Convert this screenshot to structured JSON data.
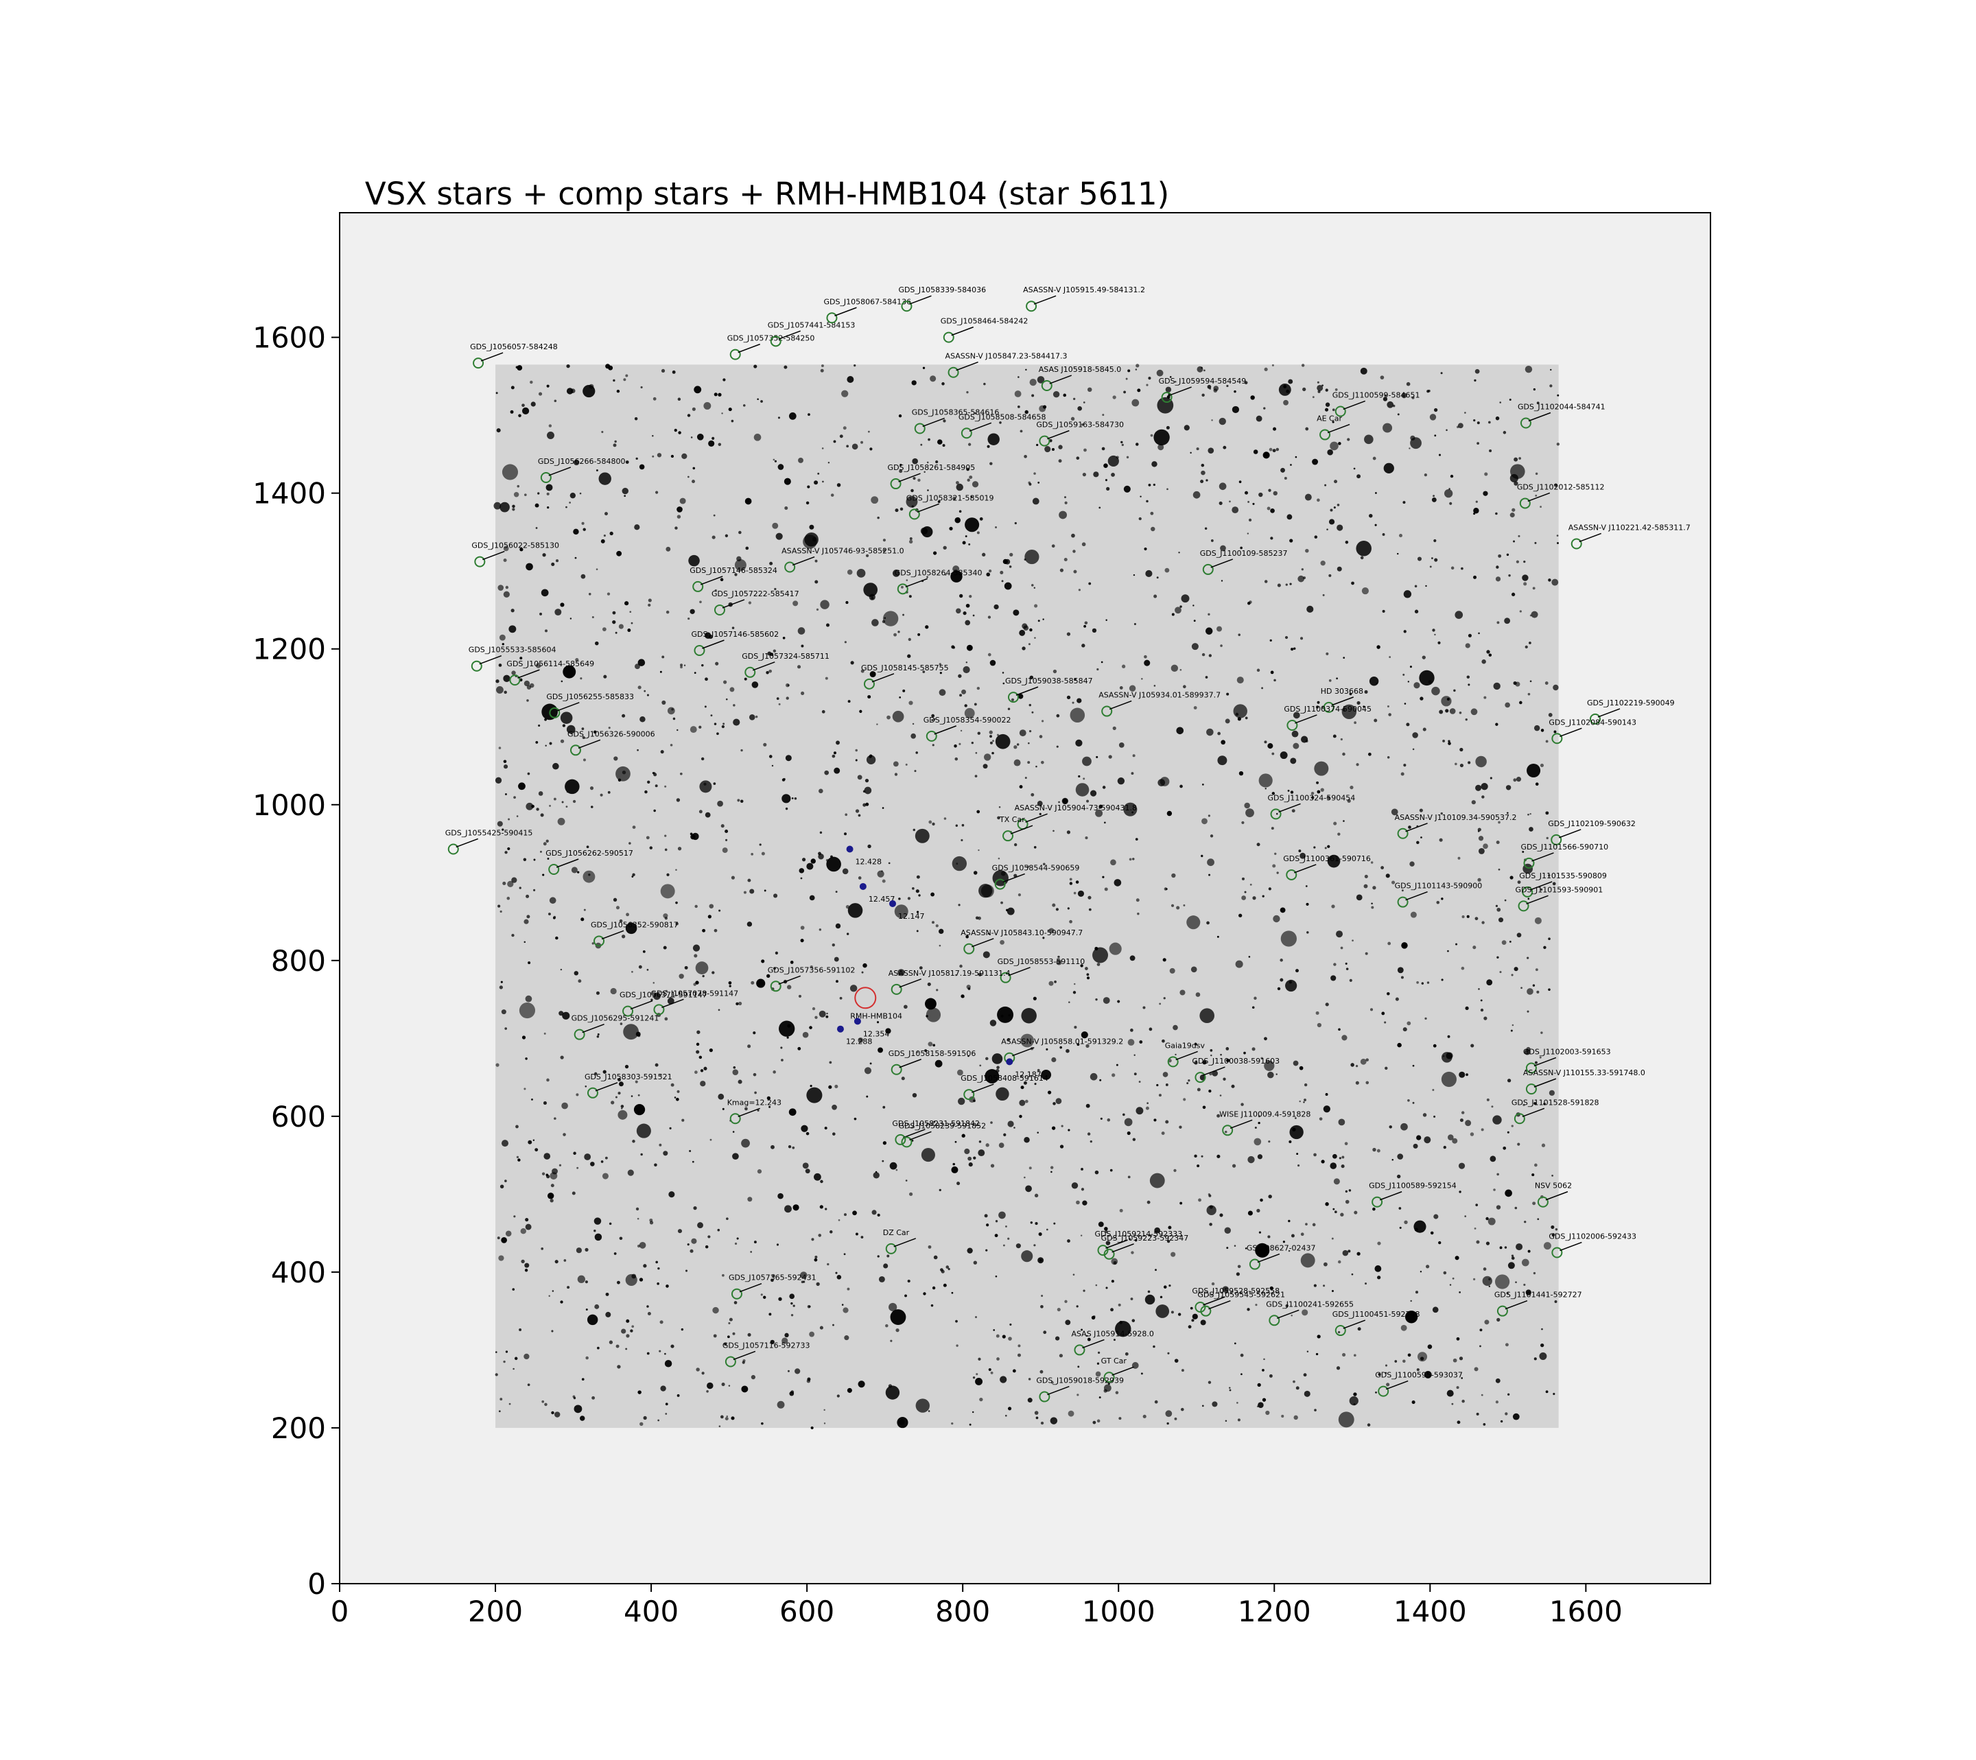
{
  "chart_data": {
    "type": "scatter",
    "title": "VSX stars + comp stars + RMH-HMB104 (star 5611)",
    "xlabel": "",
    "ylabel": "",
    "xlim": [
      0,
      1760
    ],
    "ylim": [
      0,
      1760
    ],
    "x_ticks": [
      0,
      200,
      400,
      600,
      800,
      1000,
      1200,
      1400,
      1600
    ],
    "y_ticks": [
      0,
      200,
      400,
      600,
      800,
      1000,
      1200,
      1400,
      1600
    ],
    "grid": false,
    "image_extent": {
      "x": [
        200,
        1565
      ],
      "y": [
        200,
        1565
      ]
    },
    "colors": {
      "vsx_marker": "#2e7d32",
      "comp_marker": "#1a1a8c",
      "target_marker": "#d32f2f",
      "background": "#f0f0f0",
      "image_background": "#d4d4d4",
      "star": "#000000"
    },
    "vsx_stars": [
      {
        "name": "GDS_J1056057-584248",
        "x": 178,
        "y": 1567
      },
      {
        "name": "GDS_J1057352-584250",
        "x": 508,
        "y": 1578
      },
      {
        "name": "GDS_J1057441-584153",
        "x": 560,
        "y": 1595
      },
      {
        "name": "GDS_J1058067-584136",
        "x": 632,
        "y": 1625
      },
      {
        "name": "GDS_J1058339-584036",
        "x": 728,
        "y": 1640
      },
      {
        "name": "ASASSN-V J105915.49-584131.2",
        "x": 888,
        "y": 1640
      },
      {
        "name": "GDS_J1058464-584242",
        "x": 782,
        "y": 1600
      },
      {
        "name": "ASASSN-V J105847.23-584417.3",
        "x": 788,
        "y": 1555
      },
      {
        "name": "ASAS J105918-5845.0",
        "x": 908,
        "y": 1538
      },
      {
        "name": "GDS_J1059594-584549",
        "x": 1062,
        "y": 1523
      },
      {
        "name": "GDS_J1100599-584651",
        "x": 1285,
        "y": 1505
      },
      {
        "name": "AE Car",
        "x": 1265,
        "y": 1475
      },
      {
        "name": "GDS_J1102044-584741",
        "x": 1523,
        "y": 1490
      },
      {
        "name": "GDS_J1058365-584616",
        "x": 745,
        "y": 1483
      },
      {
        "name": "GDS_J1058508-584658",
        "x": 805,
        "y": 1477
      },
      {
        "name": "GDS_J1059163-584730",
        "x": 905,
        "y": 1467
      },
      {
        "name": "GDS_J1056266-584800",
        "x": 265,
        "y": 1420
      },
      {
        "name": "GDS_J1058261-584905",
        "x": 714,
        "y": 1412
      },
      {
        "name": "GDS_J1058321-585019",
        "x": 738,
        "y": 1373
      },
      {
        "name": "GDS_J1102012-585112",
        "x": 1522,
        "y": 1387
      },
      {
        "name": "ASASSN-V J110221.42-585311.7",
        "x": 1588,
        "y": 1335
      },
      {
        "name": "GDS_J1056022-585130",
        "x": 180,
        "y": 1312
      },
      {
        "name": "ASASSN-V J105746-93-585251.0",
        "x": 578,
        "y": 1305
      },
      {
        "name": "GDS_J1100109-585237",
        "x": 1115,
        "y": 1302
      },
      {
        "name": "GDS_J1057146-585324",
        "x": 460,
        "y": 1280
      },
      {
        "name": "GDS_J1058264-585340",
        "x": 723,
        "y": 1277
      },
      {
        "name": "GDS_J1057222-585417",
        "x": 488,
        "y": 1250
      },
      {
        "name": "GDS_J1057146-585602",
        "x": 462,
        "y": 1198
      },
      {
        "name": "GDS_J1055533-585604",
        "x": 176,
        "y": 1178
      },
      {
        "name": "GDS_J1057324-585711",
        "x": 527,
        "y": 1170
      },
      {
        "name": "GDS_J1056114-585649",
        "x": 225,
        "y": 1160
      },
      {
        "name": "GDS_J1058145-585755",
        "x": 680,
        "y": 1155
      },
      {
        "name": "GDS_J1059038-585847",
        "x": 865,
        "y": 1138
      },
      {
        "name": "ASASSN-V J105934.01-589937.7",
        "x": 985,
        "y": 1120
      },
      {
        "name": "HD 303668",
        "x": 1270,
        "y": 1125
      },
      {
        "name": "GDS_J1056255-585833",
        "x": 276,
        "y": 1118
      },
      {
        "name": "GDS_J1100374-590045",
        "x": 1223,
        "y": 1102
      },
      {
        "name": "GDS_J1102219-590049",
        "x": 1612,
        "y": 1110
      },
      {
        "name": "GDS_J1058354-590022",
        "x": 760,
        "y": 1088
      },
      {
        "name": "GDS_J1102084-590143",
        "x": 1563,
        "y": 1085
      },
      {
        "name": "GDS_J1056326-590006",
        "x": 303,
        "y": 1070
      },
      {
        "name": "GDS_J1100324-590454",
        "x": 1202,
        "y": 988
      },
      {
        "name": "ASASSN-V J105904-73-590431.8",
        "x": 877,
        "y": 975
      },
      {
        "name": "TX Car",
        "x": 858,
        "y": 960
      },
      {
        "name": "ASASSN-V J110109.34-590537.2",
        "x": 1365,
        "y": 963
      },
      {
        "name": "GDS_J1102109-590632",
        "x": 1562,
        "y": 955
      },
      {
        "name": "GDS_J1055425-590415",
        "x": 146,
        "y": 943
      },
      {
        "name": "GDS_J1056262-590517",
        "x": 275,
        "y": 917
      },
      {
        "name": "GDS_J1101566-590710",
        "x": 1527,
        "y": 925
      },
      {
        "name": "GDS_J1100361-590716",
        "x": 1222,
        "y": 910
      },
      {
        "name": "GDS_J1058544-590659",
        "x": 848,
        "y": 898
      },
      {
        "name": "GDS_J1101535-590809",
        "x": 1525,
        "y": 888
      },
      {
        "name": "GDS_J1101143-590900",
        "x": 1365,
        "y": 875
      },
      {
        "name": "GDS_J1101593-590901",
        "x": 1520,
        "y": 870
      },
      {
        "name": "GDS_J1056352-590817",
        "x": 333,
        "y": 825
      },
      {
        "name": "ASASSN-V J105843.10-590947.7",
        "x": 808,
        "y": 815
      },
      {
        "name": "GDS_J1058553-591110",
        "x": 855,
        "y": 778
      },
      {
        "name": "GDS_J1057356-591102",
        "x": 560,
        "y": 767
      },
      {
        "name": "ASASSN-V J105817.19-591131.4",
        "x": 715,
        "y": 763
      },
      {
        "name": "GDS_J1056371-591147",
        "x": 370,
        "y": 735
      },
      {
        "name": "GDS_J1057078-591147",
        "x": 410,
        "y": 737
      },
      {
        "name": "GDS_J1056295-591241",
        "x": 308,
        "y": 705
      },
      {
        "name": "ASASSN-V J105858.01-591329.2",
        "x": 860,
        "y": 675
      },
      {
        "name": "Gaia19dsv",
        "x": 1070,
        "y": 670
      },
      {
        "name": "GDS_J1058158-591506",
        "x": 715,
        "y": 660
      },
      {
        "name": "GDS_J1100038-591603",
        "x": 1105,
        "y": 650
      },
      {
        "name": "GDS_J1102003-591653",
        "x": 1530,
        "y": 662
      },
      {
        "name": "GDS_J1058303-591521",
        "x": 325,
        "y": 630
      },
      {
        "name": "GDS_J1058408-591614",
        "x": 808,
        "y": 628
      },
      {
        "name": "ASASSN-V J110155.33-591748.0",
        "x": 1530,
        "y": 635
      },
      {
        "name": "Kmag=12.243",
        "x": 508,
        "y": 597
      },
      {
        "name": "WISE J110009.4-591828",
        "x": 1140,
        "y": 582
      },
      {
        "name": "GDS_J1101528-591828",
        "x": 1515,
        "y": 597
      },
      {
        "name": "GDS_J1058231-591842",
        "x": 720,
        "y": 570
      },
      {
        "name": "GDS_J1058239-591852",
        "x": 728,
        "y": 567
      },
      {
        "name": "GDS_J1100589-592154",
        "x": 1332,
        "y": 490
      },
      {
        "name": "NSV 5062",
        "x": 1545,
        "y": 490
      },
      {
        "name": "GDS_J1059214-592333",
        "x": 980,
        "y": 428
      },
      {
        "name": "GDS_J1059223-592347",
        "x": 988,
        "y": 423
      },
      {
        "name": "GSC 08627-02437",
        "x": 1175,
        "y": 410
      },
      {
        "name": "DZ Car",
        "x": 708,
        "y": 430
      },
      {
        "name": "GDS_J1102006-592433",
        "x": 1563,
        "y": 425
      },
      {
        "name": "GDS_J1057365-592431",
        "x": 510,
        "y": 372
      },
      {
        "name": "GDS_J1059528-592558",
        "x": 1105,
        "y": 355
      },
      {
        "name": "GDS_J1059545-592621",
        "x": 1112,
        "y": 350
      },
      {
        "name": "GDS_J1101441-592727",
        "x": 1493,
        "y": 350
      },
      {
        "name": "GDS_J1100241-592655",
        "x": 1200,
        "y": 338
      },
      {
        "name": "GDS_J1100451-592748",
        "x": 1285,
        "y": 325
      },
      {
        "name": "ASAS J105914-5928.0",
        "x": 950,
        "y": 300
      },
      {
        "name": "GDS_J1057116-592733",
        "x": 502,
        "y": 285
      },
      {
        "name": "GT Car",
        "x": 988,
        "y": 265
      },
      {
        "name": "GDS_J1059018-592939",
        "x": 905,
        "y": 240
      },
      {
        "name": "GDS_J1100595-593037",
        "x": 1340,
        "y": 247
      }
    ],
    "comp_stars": [
      {
        "label": "12.428",
        "x": 655,
        "y": 943
      },
      {
        "label": "12.457",
        "x": 672,
        "y": 895
      },
      {
        "label": "12.147",
        "x": 710,
        "y": 873
      },
      {
        "label": "12.354",
        "x": 665,
        "y": 722
      },
      {
        "label": "12.288",
        "x": 643,
        "y": 712
      },
      {
        "label": "12.187",
        "x": 860,
        "y": 670
      }
    ],
    "target": {
      "label": "RMH-HMB104",
      "x": 675,
      "y": 752
    }
  }
}
